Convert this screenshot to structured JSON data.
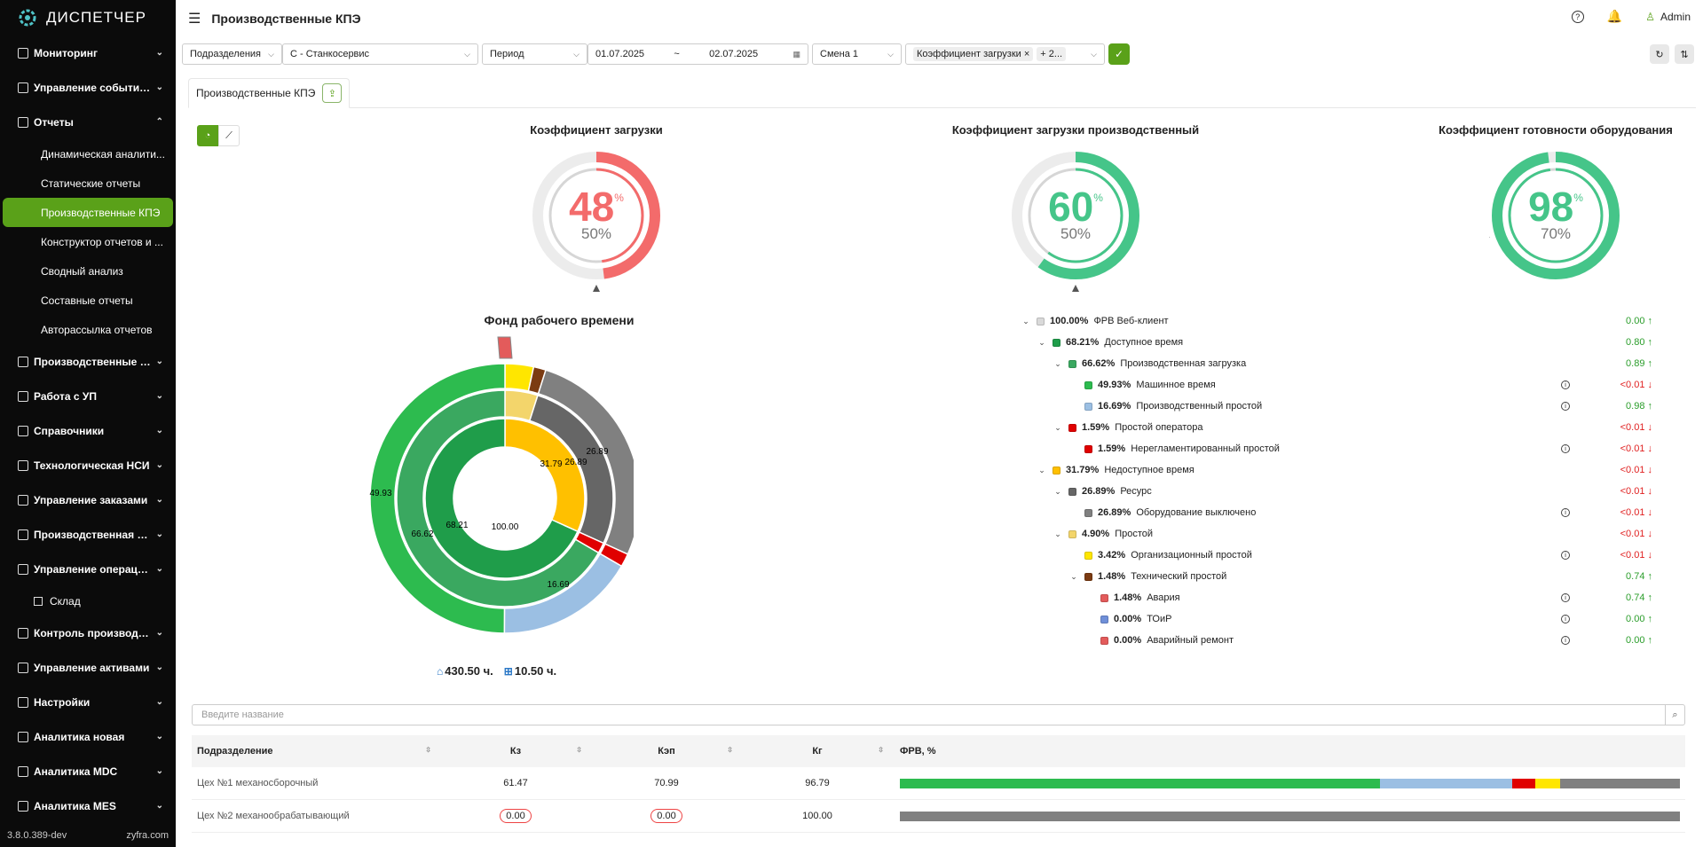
{
  "app": {
    "logo_text": "ДИСПЕТЧЕР",
    "version": "3.8.0.389-dev",
    "vendor": "zyfra.com"
  },
  "sidebar": {
    "items": [
      {
        "label": "Мониторинг",
        "expanded": false
      },
      {
        "label": "Управление событиями",
        "expanded": false
      },
      {
        "label": "Отчеты",
        "expanded": true
      }
    ],
    "sub": [
      {
        "label": "Динамическая аналити..."
      },
      {
        "label": "Статические отчеты"
      },
      {
        "label": "Производственные КПЭ",
        "active": true
      },
      {
        "label": "Конструктор отчетов и ..."
      },
      {
        "label": "Сводный анализ"
      },
      {
        "label": "Составные отчеты"
      },
      {
        "label": "Авторассылка отчетов"
      }
    ],
    "items2": [
      {
        "label": "Производственные жу..."
      },
      {
        "label": "Работа с УП"
      },
      {
        "label": "Справочники"
      },
      {
        "label": "Технологическая НСИ"
      },
      {
        "label": "Управление заказами"
      },
      {
        "label": "Производственная ло..."
      },
      {
        "label": "Управление операция..."
      }
    ],
    "warehouse": "Склад",
    "items3": [
      {
        "label": "Контроль производства"
      },
      {
        "label": "Управление активами"
      },
      {
        "label": "Настройки"
      },
      {
        "label": "Аналитика новая"
      },
      {
        "label": "Аналитика MDC"
      },
      {
        "label": "Аналитика MES"
      }
    ]
  },
  "header": {
    "title": "Производственные КПЭ",
    "user": "Admin"
  },
  "filters": {
    "division_label": "Подразделения",
    "division_value": "С - Станкосервис",
    "period_label": "Период",
    "date_from": "01.07.2025",
    "date_sep": "~",
    "date_to": "02.07.2025",
    "shift": "Смена 1",
    "metric_chip": "Коэффициент загрузки",
    "more_chip": "+ 2..."
  },
  "tab": {
    "label": "Производственные КПЭ"
  },
  "gauges": [
    {
      "title": "Коэффициент загрузки",
      "value": 48,
      "target": "50%",
      "unit": "%",
      "color": "#f36b6b",
      "target_frac": 0.5
    },
    {
      "title": "Коэффициент загрузки производственный",
      "value": 60,
      "target": "50%",
      "unit": "%",
      "color": "#45c589",
      "target_frac": 0.5
    },
    {
      "title": "Коэффициент готовности оборудования",
      "value": 98,
      "target": "70%",
      "unit": "%",
      "color": "#45c589",
      "target_frac": 0.7
    }
  ],
  "fund": {
    "title": "Фонд рабочего времени",
    "total1": "430.50 ч.",
    "total2": "10.50 ч.",
    "labels": {
      "center": "100.00",
      "l6821": "68.21",
      "l6662": "66.62",
      "l4993": "49.93",
      "l3179": "31.79",
      "l2689a": "26.89",
      "l2689b": "26.89",
      "l1669": "16.69"
    }
  },
  "tree": [
    {
      "lvl": 0,
      "tog": "⌄",
      "color": "#d9d9d9",
      "pct": "100.00%",
      "name": "ФРВ Веб-клиент",
      "delta": "0.00 ↑",
      "pos": true,
      "info": false
    },
    {
      "lvl": 1,
      "tog": "⌄",
      "color": "#1f9d4a",
      "pct": "68.21%",
      "name": "Доступное время",
      "delta": "0.80 ↑",
      "pos": true,
      "info": false
    },
    {
      "lvl": 2,
      "tog": "⌄",
      "color": "#3aa860",
      "pct": "66.62%",
      "name": "Производственная загрузка",
      "delta": "0.89 ↑",
      "pos": true,
      "info": false
    },
    {
      "lvl": 3,
      "tog": "",
      "color": "#2dbb4f",
      "pct": "49.93%",
      "name": "Машинное время",
      "delta": "<0.01 ↓",
      "pos": false,
      "info": true
    },
    {
      "lvl": 3,
      "tog": "",
      "color": "#9bbfe3",
      "pct": "16.69%",
      "name": "Производственный простой",
      "delta": "0.98 ↑",
      "pos": true,
      "info": true
    },
    {
      "lvl": 2,
      "tog": "⌄",
      "color": "#e00000",
      "pct": "1.59%",
      "name": "Простой оператора",
      "delta": "<0.01 ↓",
      "pos": false,
      "info": false
    },
    {
      "lvl": 3,
      "tog": "",
      "color": "#e00000",
      "pct": "1.59%",
      "name": "Нерегламентированный простой",
      "delta": "<0.01 ↓",
      "pos": false,
      "info": true
    },
    {
      "lvl": 1,
      "tog": "⌄",
      "color": "#ffc000",
      "pct": "31.79%",
      "name": "Недоступное время",
      "delta": "<0.01 ↓",
      "pos": false,
      "info": false
    },
    {
      "lvl": 2,
      "tog": "⌄",
      "color": "#666666",
      "pct": "26.89%",
      "name": "Ресурс",
      "delta": "<0.01 ↓",
      "pos": false,
      "info": false
    },
    {
      "lvl": 3,
      "tog": "",
      "color": "#808080",
      "pct": "26.89%",
      "name": "Оборудование выключено",
      "delta": "<0.01 ↓",
      "pos": false,
      "info": true
    },
    {
      "lvl": 2,
      "tog": "⌄",
      "color": "#f3d56b",
      "pct": "4.90%",
      "name": "Простой",
      "delta": "<0.01 ↓",
      "pos": false,
      "info": false
    },
    {
      "lvl": 3,
      "tog": "",
      "color": "#ffe600",
      "pct": "3.42%",
      "name": "Организационный простой",
      "delta": "<0.01 ↓",
      "pos": false,
      "info": true
    },
    {
      "lvl": 3,
      "tog": "⌄",
      "color": "#7b3b12",
      "pct": "1.48%",
      "name": "Технический простой",
      "delta": "0.74 ↑",
      "pos": true,
      "info": false
    },
    {
      "lvl": 4,
      "tog": "",
      "color": "#e35b5b",
      "pct": "1.48%",
      "name": "Авария",
      "delta": "0.74 ↑",
      "pos": true,
      "info": true
    },
    {
      "lvl": 4,
      "tog": "",
      "color": "#6f8fd8",
      "pct": "0.00%",
      "name": "ТОиР",
      "delta": "0.00 ↑",
      "pos": true,
      "info": true
    },
    {
      "lvl": 4,
      "tog": "",
      "color": "#e35b5b",
      "pct": "0.00%",
      "name": "Аварийный ремонт",
      "delta": "0.00 ↑",
      "pos": true,
      "info": true
    }
  ],
  "search": {
    "placeholder": "Введите название"
  },
  "table": {
    "headers": [
      "Подразделение",
      "Кз",
      "Кэп",
      "Кг",
      "ФРВ, %"
    ],
    "rows": [
      {
        "name": "Цех №1 механосборочный",
        "kz": "61.47",
        "kep": "70.99",
        "kg": "96.79",
        "kz_bad": false,
        "kep_bad": false,
        "bar": [
          {
            "c": "#2dbb4f",
            "v": 61.5
          },
          {
            "c": "#9bbfe3",
            "v": 17
          },
          {
            "c": "#e00000",
            "v": 3
          },
          {
            "c": "#ffe600",
            "v": 3.2
          },
          {
            "c": "#808080",
            "v": 15.3
          }
        ]
      },
      {
        "name": "Цех №2 механообрабатывающий",
        "kz": "0.00",
        "kep": "0.00",
        "kg": "100.00",
        "kz_bad": true,
        "kep_bad": true,
        "bar": [
          {
            "c": "#808080",
            "v": 100
          }
        ]
      }
    ]
  }
}
